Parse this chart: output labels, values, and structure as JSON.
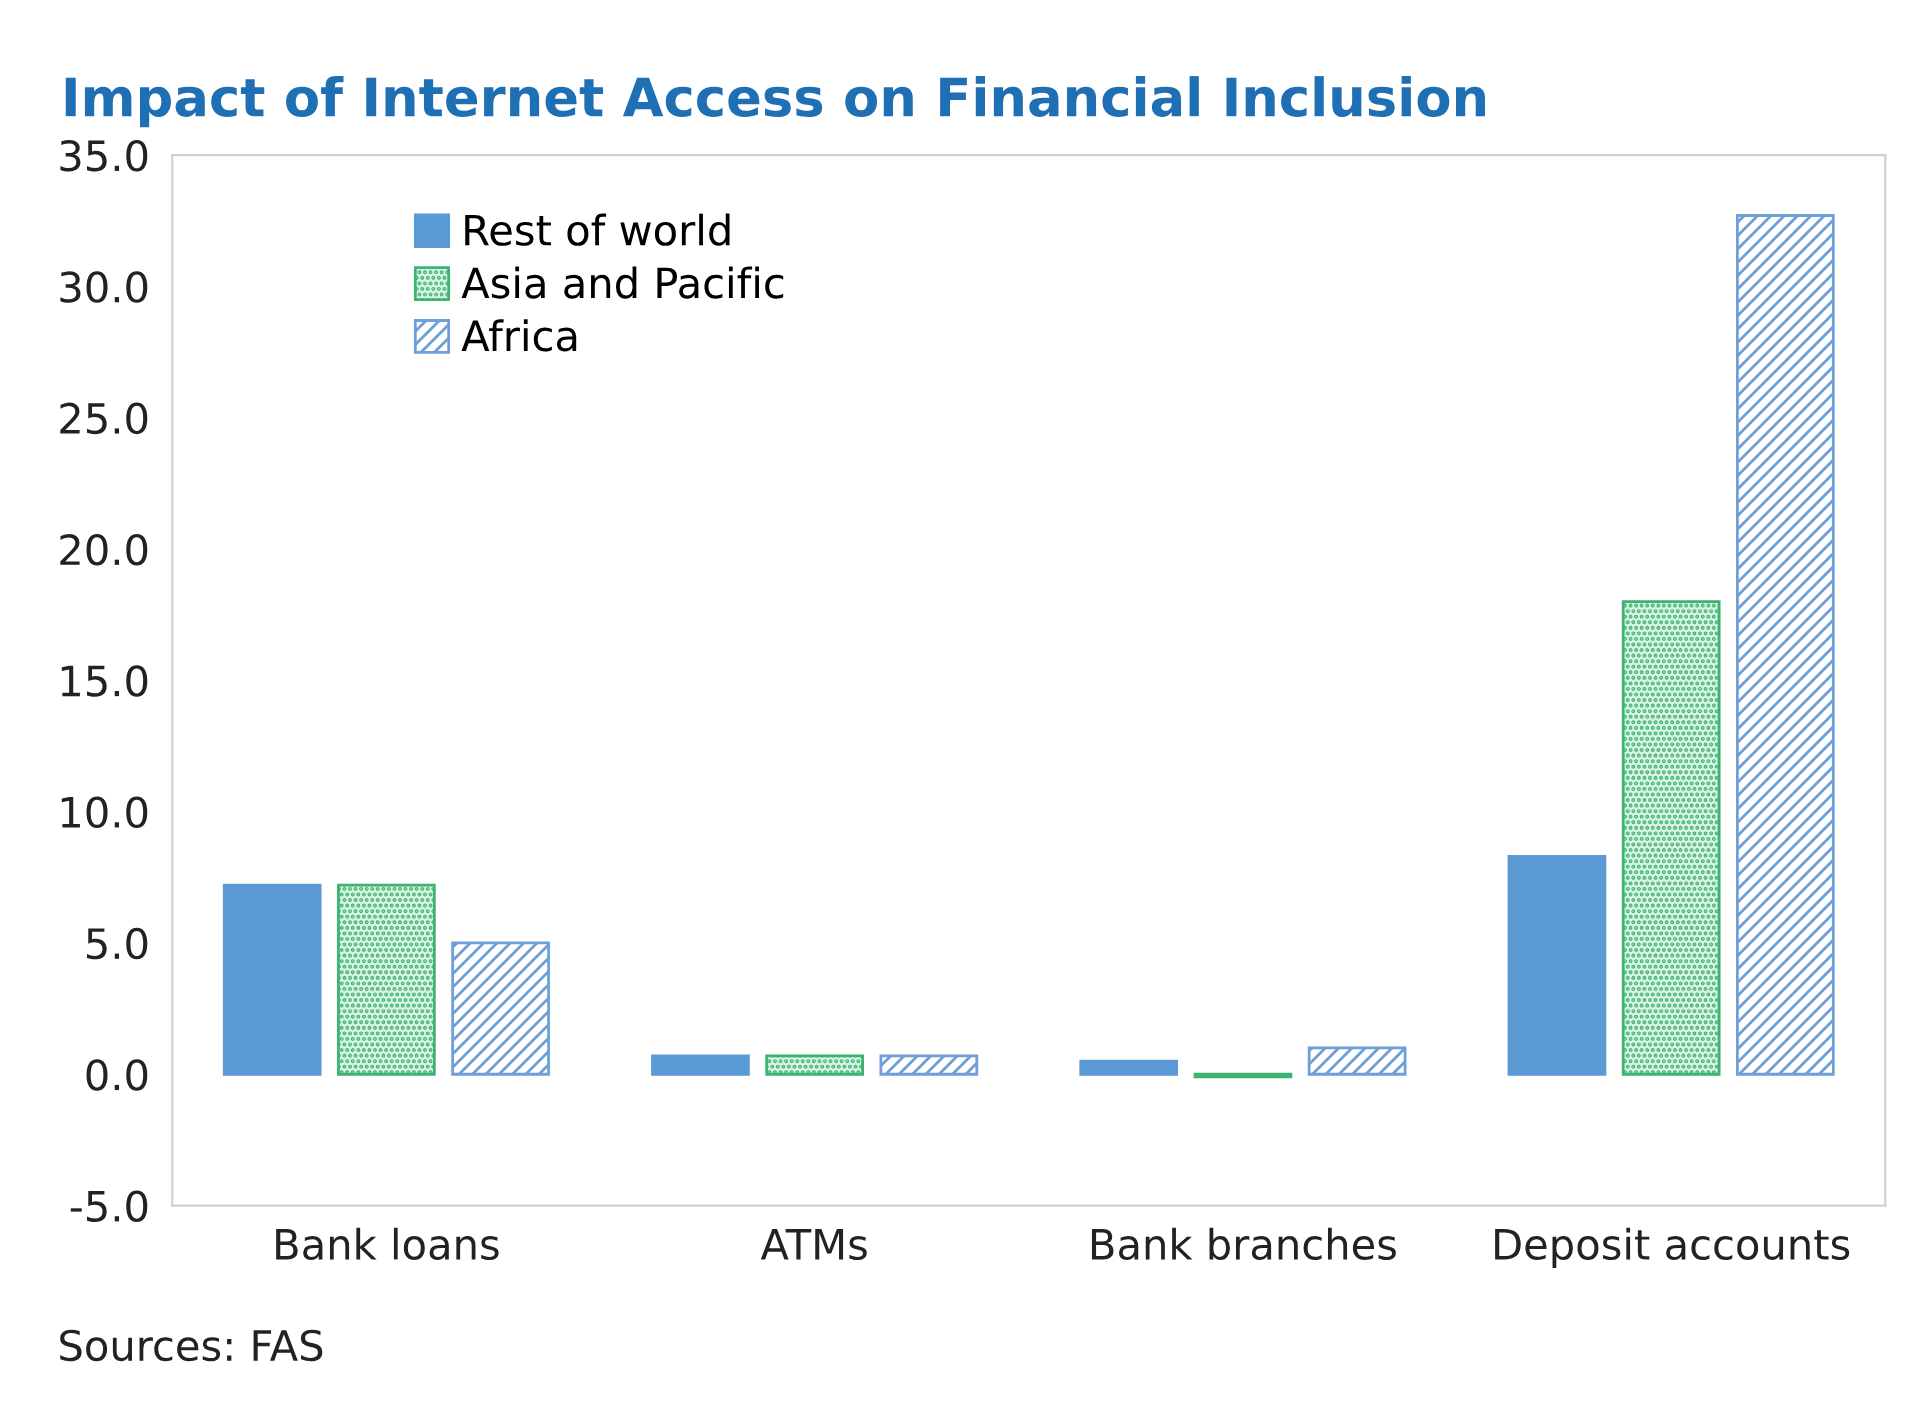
{
  "chart_data": {
    "type": "bar",
    "title": "Impact of Internet Access on Financial Inclusion",
    "categories": [
      "Bank loans",
      "ATMs",
      "Bank branches",
      "Deposit accounts"
    ],
    "series": [
      {
        "name": "Rest of world",
        "color": "#5b9bd5",
        "values": [
          7.2,
          0.7,
          0.5,
          8.3
        ]
      },
      {
        "name": "Asia and Pacific",
        "color": "#3cb371",
        "values": [
          7.2,
          0.7,
          -0.1,
          18.0
        ]
      },
      {
        "name": "Africa",
        "color": "#6f9fd8",
        "values": [
          5.0,
          0.7,
          1.0,
          32.7
        ]
      }
    ],
    "ylim": [
      -5,
      35
    ],
    "yticks": [
      {
        "value": -5,
        "label": "-5.0"
      },
      {
        "value": 0,
        "label": "0.0"
      },
      {
        "value": 5,
        "label": "5.0"
      },
      {
        "value": 10,
        "label": "10.0"
      },
      {
        "value": 15,
        "label": "15.0"
      },
      {
        "value": 20,
        "label": "20.0"
      },
      {
        "value": 25,
        "label": "25.0"
      },
      {
        "value": 30,
        "label": "30.0"
      },
      {
        "value": 35,
        "label": "35.0"
      }
    ],
    "grid": false,
    "legend": "top left",
    "annotations": [
      "Sources: FAS"
    ]
  }
}
